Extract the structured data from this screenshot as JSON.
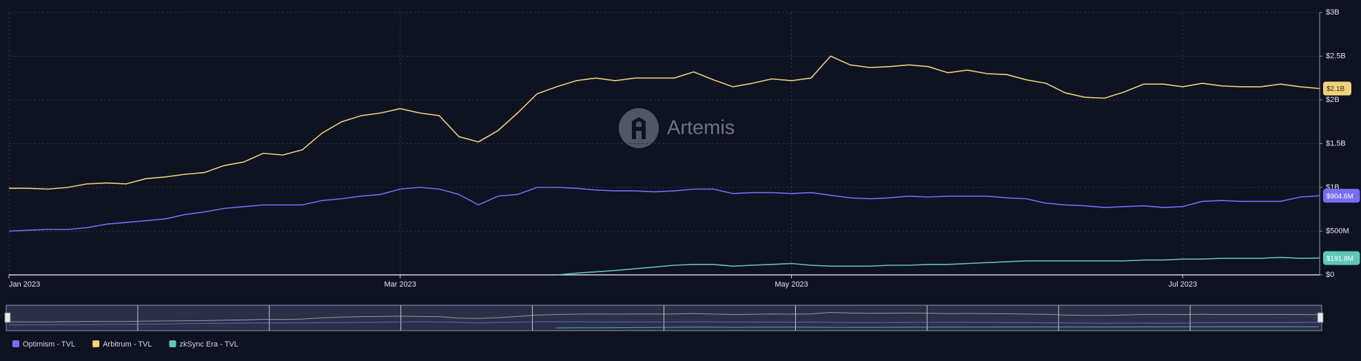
{
  "chart_data": {
    "type": "line",
    "watermark": "Artemis",
    "categories": [
      "Jan 2023",
      null,
      null,
      null,
      null,
      null,
      null,
      null,
      null,
      null,
      null,
      null,
      null,
      null,
      null,
      null,
      null,
      null,
      null,
      null,
      "Mar 2023",
      null,
      null,
      null,
      null,
      null,
      null,
      null,
      null,
      null,
      null,
      null,
      null,
      null,
      null,
      null,
      null,
      null,
      null,
      null,
      "May 2023",
      null,
      null,
      null,
      null,
      null,
      null,
      null,
      null,
      null,
      null,
      null,
      null,
      null,
      null,
      null,
      null,
      null,
      null,
      null,
      "Jul 2023",
      null,
      null,
      null,
      null,
      null,
      null,
      null
    ],
    "ylim": [
      0,
      3
    ],
    "yticks": [
      {
        "value": 0,
        "label": "$0"
      },
      {
        "value": 0.5,
        "label": "$500M"
      },
      {
        "value": 1,
        "label": "$1B"
      },
      {
        "value": 1.5,
        "label": "$1.5B"
      },
      {
        "value": 2,
        "label": "$2B"
      },
      {
        "value": 2.5,
        "label": "$2.5B"
      },
      {
        "value": 3,
        "label": "$3B"
      }
    ],
    "grid": true,
    "legend": "bottom-left",
    "series": [
      {
        "name": "Optimism - TVL",
        "color": "#7b6cf6",
        "values": [
          0.5,
          0.51,
          0.52,
          0.52,
          0.54,
          0.58,
          0.6,
          0.62,
          0.64,
          0.69,
          0.72,
          0.76,
          0.78,
          0.8,
          0.8,
          0.8,
          0.85,
          0.87,
          0.9,
          0.92,
          0.98,
          1.0,
          0.98,
          0.92,
          0.8,
          0.9,
          0.92,
          1.0,
          1.0,
          0.99,
          0.97,
          0.96,
          0.96,
          0.95,
          0.96,
          0.98,
          0.98,
          0.93,
          0.94,
          0.94,
          0.93,
          0.94,
          0.91,
          0.88,
          0.87,
          0.88,
          0.9,
          0.89,
          0.9,
          0.9,
          0.9,
          0.88,
          0.87,
          0.82,
          0.8,
          0.79,
          0.77,
          0.78,
          0.79,
          0.77,
          0.78,
          0.84,
          0.85,
          0.84,
          0.84,
          0.84,
          0.89,
          0.9046
        ],
        "value_labels": [
          null,
          null,
          null,
          null,
          null,
          null,
          null,
          null,
          null,
          null,
          null,
          null,
          null,
          null,
          null,
          null,
          null,
          null,
          null,
          null,
          null,
          null,
          null,
          null,
          null,
          null,
          null,
          null,
          null,
          null,
          null,
          null,
          null,
          null,
          null,
          null,
          null,
          null,
          null,
          null,
          null,
          null,
          null,
          null,
          null,
          null,
          null,
          null,
          null,
          null,
          null,
          null,
          null,
          null,
          null,
          null,
          null,
          null,
          null,
          null,
          null,
          null,
          null,
          null,
          null,
          null,
          null,
          "$904.6M"
        ]
      },
      {
        "name": "Arbitrum - TVL",
        "color": "#f0d27a",
        "values": [
          0.99,
          0.99,
          0.98,
          1.0,
          1.04,
          1.05,
          1.04,
          1.1,
          1.12,
          1.15,
          1.17,
          1.25,
          1.29,
          1.39,
          1.37,
          1.43,
          1.62,
          1.75,
          1.82,
          1.85,
          1.9,
          1.85,
          1.82,
          1.58,
          1.52,
          1.65,
          1.85,
          2.07,
          2.15,
          2.22,
          2.25,
          2.22,
          2.25,
          2.25,
          2.25,
          2.32,
          2.23,
          2.15,
          2.19,
          2.24,
          2.22,
          2.25,
          2.5,
          2.4,
          2.37,
          2.38,
          2.4,
          2.38,
          2.31,
          2.34,
          2.3,
          2.29,
          2.23,
          2.19,
          2.08,
          2.03,
          2.02,
          2.09,
          2.18,
          2.18,
          2.15,
          2.19,
          2.16,
          2.15,
          2.15,
          2.18,
          2.15,
          2.13
        ],
        "value_labels": [
          null,
          null,
          null,
          null,
          null,
          null,
          null,
          null,
          null,
          null,
          null,
          null,
          null,
          null,
          null,
          null,
          null,
          null,
          null,
          null,
          null,
          null,
          null,
          null,
          null,
          null,
          null,
          null,
          null,
          null,
          null,
          null,
          null,
          null,
          null,
          null,
          null,
          null,
          null,
          null,
          null,
          null,
          null,
          null,
          null,
          null,
          null,
          null,
          null,
          null,
          null,
          null,
          null,
          null,
          null,
          null,
          null,
          null,
          null,
          null,
          null,
          null,
          null,
          null,
          null,
          null,
          null,
          "$2.1B"
        ]
      },
      {
        "name": "zkSync Era - TVL",
        "color": "#5fc8b5",
        "values": [
          null,
          null,
          null,
          null,
          null,
          null,
          null,
          null,
          null,
          null,
          null,
          null,
          null,
          null,
          null,
          null,
          null,
          null,
          null,
          null,
          null,
          null,
          null,
          null,
          null,
          null,
          null,
          null,
          0.0,
          0.02,
          0.035,
          0.05,
          0.07,
          0.09,
          0.11,
          0.12,
          0.12,
          0.1,
          0.11,
          0.12,
          0.13,
          0.11,
          0.1,
          0.1,
          0.1,
          0.11,
          0.11,
          0.12,
          0.12,
          0.13,
          0.14,
          0.15,
          0.16,
          0.16,
          0.16,
          0.16,
          0.16,
          0.16,
          0.17,
          0.17,
          0.18,
          0.18,
          0.19,
          0.19,
          0.19,
          0.2,
          0.19,
          0.1918
        ],
        "value_labels": [
          null,
          null,
          null,
          null,
          null,
          null,
          null,
          null,
          null,
          null,
          null,
          null,
          null,
          null,
          null,
          null,
          null,
          null,
          null,
          null,
          null,
          null,
          null,
          null,
          null,
          null,
          null,
          null,
          null,
          null,
          null,
          null,
          null,
          null,
          null,
          null,
          null,
          null,
          null,
          null,
          null,
          null,
          null,
          null,
          null,
          null,
          null,
          null,
          null,
          null,
          null,
          null,
          null,
          null,
          null,
          null,
          null,
          null,
          null,
          null,
          null,
          null,
          null,
          null,
          null,
          null,
          null,
          "$191.8M"
        ]
      }
    ]
  }
}
